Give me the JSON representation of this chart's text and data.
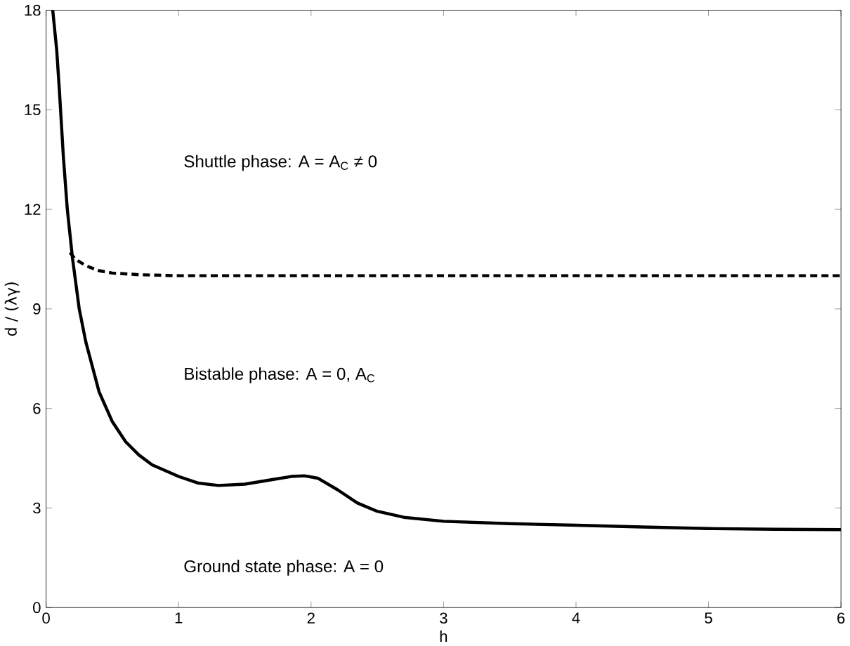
{
  "chart_data": {
    "type": "line",
    "xlabel": "h",
    "ylabel": "d / (λγ)",
    "xlim": [
      0,
      6
    ],
    "ylim": [
      0,
      18
    ],
    "xticks": [
      0,
      1,
      2,
      3,
      4,
      5,
      6
    ],
    "yticks": [
      0,
      3,
      6,
      9,
      12,
      15,
      18
    ],
    "grid": false,
    "marker": "none",
    "series": [
      {
        "color": "#000000",
        "line_style": "solid",
        "x": [
          0.05,
          0.08,
          0.1,
          0.13,
          0.16,
          0.2,
          0.25,
          0.3,
          0.4,
          0.5,
          0.6,
          0.7,
          0.8,
          1.0,
          1.15,
          1.3,
          1.5,
          1.7,
          1.85,
          1.95,
          2.05,
          2.2,
          2.35,
          2.5,
          2.7,
          3.0,
          3.5,
          4.0,
          4.5,
          5.0,
          5.5,
          6.0
        ],
        "values": [
          18,
          16.8,
          15.6,
          13.6,
          12.0,
          10.5,
          9.0,
          8.0,
          6.5,
          5.6,
          5.0,
          4.6,
          4.3,
          3.95,
          3.75,
          3.68,
          3.72,
          3.85,
          3.95,
          3.97,
          3.9,
          3.55,
          3.15,
          2.9,
          2.72,
          2.6,
          2.53,
          2.48,
          2.43,
          2.38,
          2.36,
          2.35
        ]
      },
      {
        "color": "#000000",
        "line_style": "dashed",
        "x": [
          0.18,
          0.22,
          0.3,
          0.4,
          0.5,
          0.7,
          1.0,
          2.0,
          3.0,
          4.0,
          5.0,
          6.0
        ],
        "values": [
          10.7,
          10.5,
          10.3,
          10.15,
          10.08,
          10.03,
          10.0,
          10.0,
          10.0,
          10.0,
          10.0,
          10.0
        ]
      }
    ],
    "annotations": [
      "Shuttle phase: A = A$_{C}$ ≠ 0",
      "Bistable phase: A = 0, A$_{C}$",
      "Ground state phase: A = 0"
    ]
  }
}
